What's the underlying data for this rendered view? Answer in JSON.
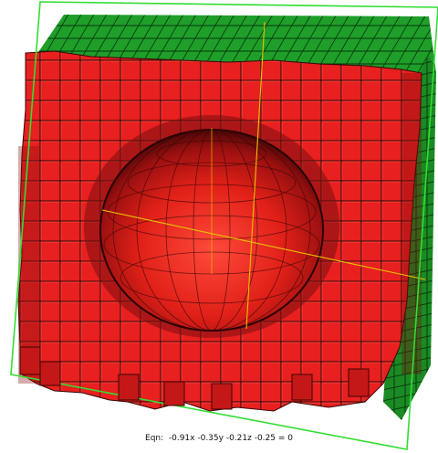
{
  "viewer": {
    "equation_text": "Eqn:  -0.91x -0.35y -0.21z -0.25 = 0"
  },
  "colors": {
    "cube_red": "#e8201f",
    "cube_dark": "#5a0b0b",
    "cap_green": "#1f9e2a",
    "cut_plane_outline": "#33dd33",
    "axis_line": "#e6c400",
    "background": "#ffffff"
  }
}
